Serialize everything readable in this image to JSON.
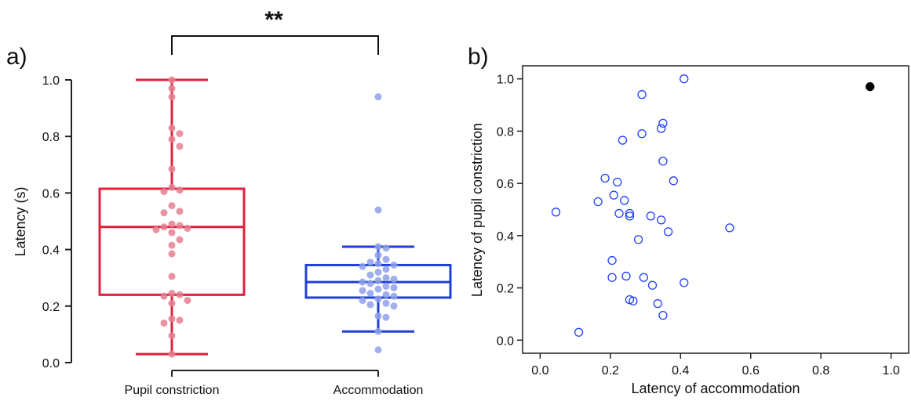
{
  "chart_data": [
    {
      "type": "box",
      "panel_label": "a)",
      "ylabel": "Latency (s)",
      "ylim": [
        0.0,
        1.0
      ],
      "yticks": [
        "0.0",
        "0.2",
        "0.4",
        "0.6",
        "0.8",
        "1.0"
      ],
      "categories": [
        "Pupil constriction",
        "Accommodation"
      ],
      "significance": "**",
      "series": [
        {
          "name": "Pupil constriction",
          "color": "#e0203f",
          "point_color": "#e57f8f",
          "box": {
            "whislo": 0.03,
            "q1": 0.24,
            "med": 0.48,
            "q3": 0.615,
            "whishi": 1.0
          },
          "points": [
            1.0,
            0.97,
            0.94,
            0.83,
            0.81,
            0.79,
            0.765,
            0.685,
            0.62,
            0.61,
            0.605,
            0.555,
            0.535,
            0.53,
            0.49,
            0.485,
            0.48,
            0.475,
            0.47,
            0.46,
            0.435,
            0.415,
            0.385,
            0.305,
            0.245,
            0.24,
            0.235,
            0.22,
            0.21,
            0.155,
            0.15,
            0.14,
            0.095,
            0.03
          ]
        },
        {
          "name": "Accommodation",
          "color": "#1f3fd6",
          "point_color": "#8fa0e8",
          "box": {
            "whislo": 0.11,
            "q1": 0.23,
            "med": 0.285,
            "q3": 0.345,
            "whishi": 0.41,
            "outliers": [
              0.94,
              0.54
            ]
          },
          "points": [
            0.94,
            0.54,
            0.41,
            0.405,
            0.38,
            0.365,
            0.355,
            0.35,
            0.345,
            0.34,
            0.33,
            0.32,
            0.31,
            0.3,
            0.295,
            0.29,
            0.285,
            0.28,
            0.27,
            0.265,
            0.26,
            0.255,
            0.245,
            0.24,
            0.235,
            0.225,
            0.22,
            0.21,
            0.205,
            0.2,
            0.165,
            0.16,
            0.11,
            0.045
          ]
        }
      ]
    },
    {
      "type": "scatter",
      "panel_label": "b)",
      "xlabel": "Latency of accommodation",
      "ylabel": "Latency of pupil constriction",
      "xlim": [
        -0.05,
        1.05
      ],
      "ylim": [
        -0.05,
        1.05
      ],
      "xticks": [
        "0.0",
        "0.2",
        "0.4",
        "0.6",
        "0.8",
        "1.0"
      ],
      "yticks": [
        "0.0",
        "0.2",
        "0.4",
        "0.6",
        "0.8",
        "1.0"
      ],
      "series": [
        {
          "color": "#1f3fff",
          "marker": "open-circle",
          "points": [
            [
              0.41,
              1.0
            ],
            [
              0.29,
              0.94
            ],
            [
              0.35,
              0.83
            ],
            [
              0.345,
              0.81
            ],
            [
              0.29,
              0.79
            ],
            [
              0.235,
              0.765
            ],
            [
              0.35,
              0.685
            ],
            [
              0.185,
              0.62
            ],
            [
              0.38,
              0.61
            ],
            [
              0.22,
              0.605
            ],
            [
              0.21,
              0.555
            ],
            [
              0.24,
              0.535
            ],
            [
              0.165,
              0.53
            ],
            [
              0.045,
              0.49
            ],
            [
              0.255,
              0.485
            ],
            [
              0.225,
              0.485
            ],
            [
              0.255,
              0.475
            ],
            [
              0.315,
              0.475
            ],
            [
              0.345,
              0.46
            ],
            [
              0.54,
              0.43
            ],
            [
              0.365,
              0.415
            ],
            [
              0.28,
              0.385
            ],
            [
              0.205,
              0.305
            ],
            [
              0.245,
              0.245
            ],
            [
              0.205,
              0.24
            ],
            [
              0.295,
              0.24
            ],
            [
              0.41,
              0.22
            ],
            [
              0.32,
              0.21
            ],
            [
              0.255,
              0.155
            ],
            [
              0.265,
              0.15
            ],
            [
              0.335,
              0.14
            ],
            [
              0.35,
              0.095
            ],
            [
              0.11,
              0.03
            ]
          ]
        },
        {
          "color": "#000000",
          "marker": "filled-circle",
          "points": [
            [
              0.94,
              0.97
            ]
          ]
        }
      ]
    }
  ]
}
